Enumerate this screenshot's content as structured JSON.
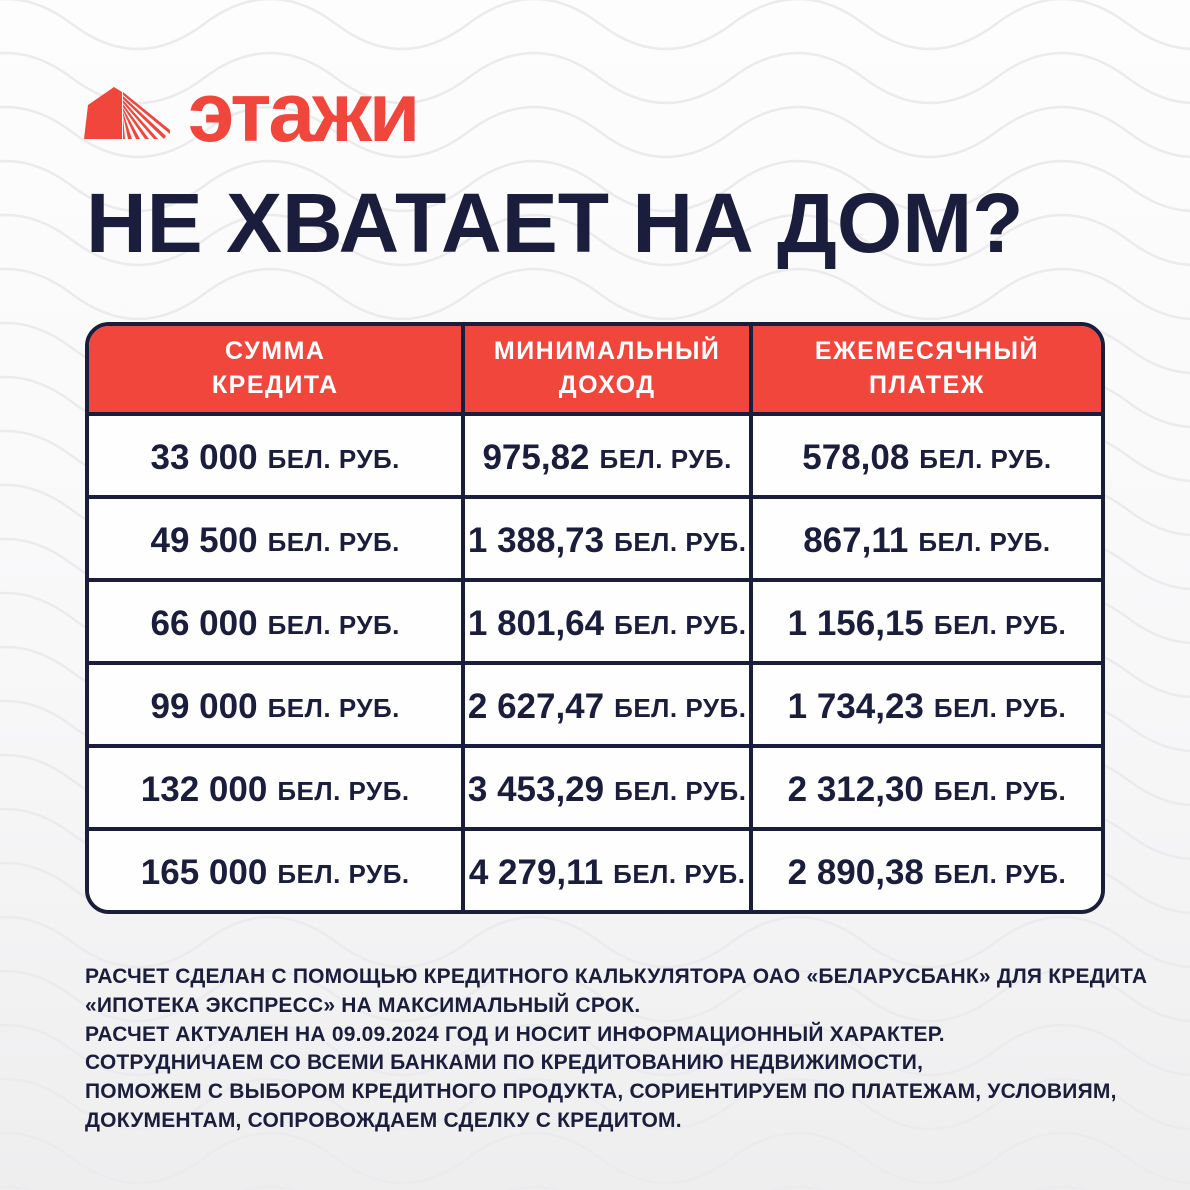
{
  "logo": {
    "text": "этажи",
    "icon": "etazhi-house-icon"
  },
  "heading": "НЕ ХВАТАЕТ НА ДОМ?",
  "table": {
    "unit": "БЕЛ. РУБ.",
    "headers": [
      {
        "line1": "СУММА",
        "line2": "КРЕДИТА"
      },
      {
        "line1": "МИНИМАЛЬНЫЙ",
        "line2": "ДОХОД"
      },
      {
        "line1": "ЕЖЕМЕСЯЧНЫЙ",
        "line2": "ПЛАТЕЖ"
      }
    ],
    "rows": [
      {
        "amount": "33 000",
        "income": "975,82",
        "payment": "578,08"
      },
      {
        "amount": "49 500",
        "income": "1 388,73",
        "payment": "867,11"
      },
      {
        "amount": "66 000",
        "income": "1 801,64",
        "payment": "1 156,15"
      },
      {
        "amount": "99 000",
        "income": "2 627,47",
        "payment": "1 734,23"
      },
      {
        "amount": "132 000",
        "income": "3 453,29",
        "payment": "2 312,30"
      },
      {
        "amount": "165 000",
        "income": "4 279,11",
        "payment": "2 890,38"
      }
    ]
  },
  "disclaimer": {
    "lines": [
      "РАСЧЕТ СДЕЛАН С ПОМОЩЬЮ КРЕДИТНОГО КАЛЬКУЛЯТОРА ОАО «БЕЛАРУСБАНК» ДЛЯ КРЕДИТА",
      "«ИПОТЕКА ЭКСПРЕСС» НА МАКСИМАЛЬНЫЙ СРОК.",
      "РАСЧЕТ АКТУАЛЕН НА 09.09.2024 ГОД И НОСИТ ИНФОРМАЦИОННЫЙ ХАРАКТЕР.",
      "СОТРУДНИЧАЕМ СО ВСЕМИ БАНКАМИ ПО КРЕДИТОВАНИЮ НЕДВИЖИМОСТИ,",
      "ПОМОЖЕМ С ВЫБОРОМ КРЕДИТНОГО ПРОДУКТА, СОРИЕНТИРУЕМ ПО ПЛАТЕЖАМ, УСЛОВИЯМ,",
      "ДОКУМЕНТАМ, СОПРОВОЖДАЕМ СДЕЛКУ С КРЕДИТОМ."
    ]
  },
  "colors": {
    "accent_red": "#F0463C",
    "navy": "#1A1E3C",
    "background_top": "#FDFDFD",
    "background_bottom": "#EEEEEF",
    "wave_line": "#EBEBEE",
    "header_text": "#FFFFFF"
  }
}
